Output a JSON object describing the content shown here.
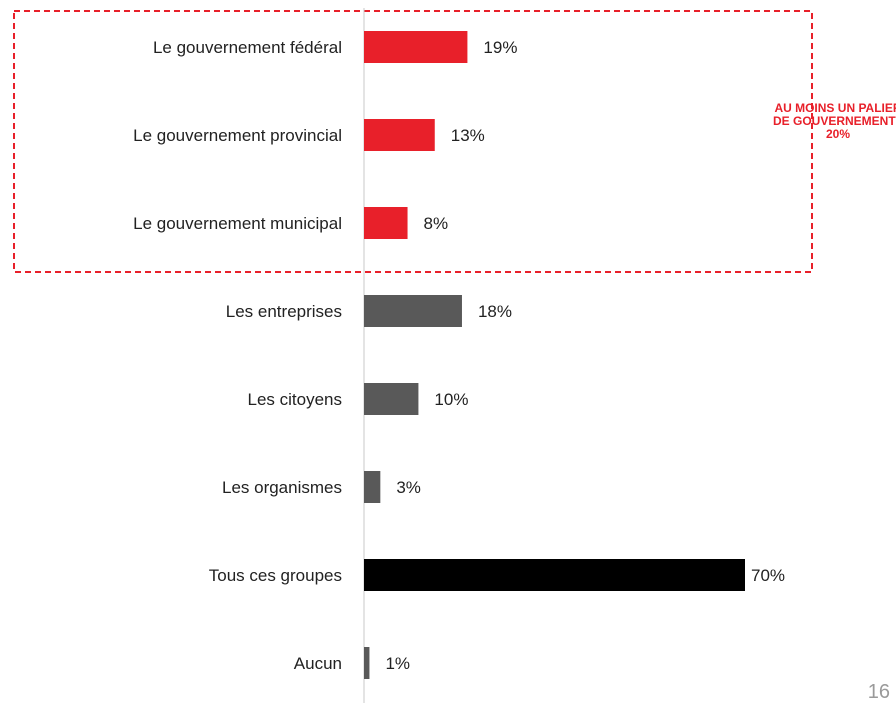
{
  "chart_data": {
    "type": "bar",
    "orientation": "horizontal",
    "title": "",
    "xlabel": "",
    "ylabel": "",
    "xlim": [
      0,
      100
    ],
    "grid": false,
    "legend": "none",
    "categories": [
      "Le gouvernement fédéral",
      "Le gouvernement provincial",
      "Le gouvernement municipal",
      "Les entreprises",
      "Les citoyens",
      "Les organismes",
      "Tous ces groupes",
      "Aucun"
    ],
    "values": [
      19,
      13,
      8,
      18,
      10,
      3,
      70,
      1
    ],
    "value_labels": [
      "19%",
      "13%",
      "8%",
      "18%",
      "10%",
      "3%",
      "70%",
      "1%"
    ],
    "bar_colors": [
      "#e8202a",
      "#e8202a",
      "#e8202a",
      "#595959",
      "#595959",
      "#595959",
      "#000000",
      "#595959"
    ],
    "annotation": {
      "lines": [
        "AU MOINS UN PALIER",
        "DE GOUVERNEMENT :",
        "20%"
      ],
      "color": "#e8202a",
      "border_style": "dashed"
    }
  },
  "page_number": "16",
  "colors": {
    "accent_red": "#e8202a",
    "bar_gray": "#595959",
    "bar_black": "#000000",
    "axis_line": "#c8c8c8",
    "page_number": "#9a9a9a"
  }
}
